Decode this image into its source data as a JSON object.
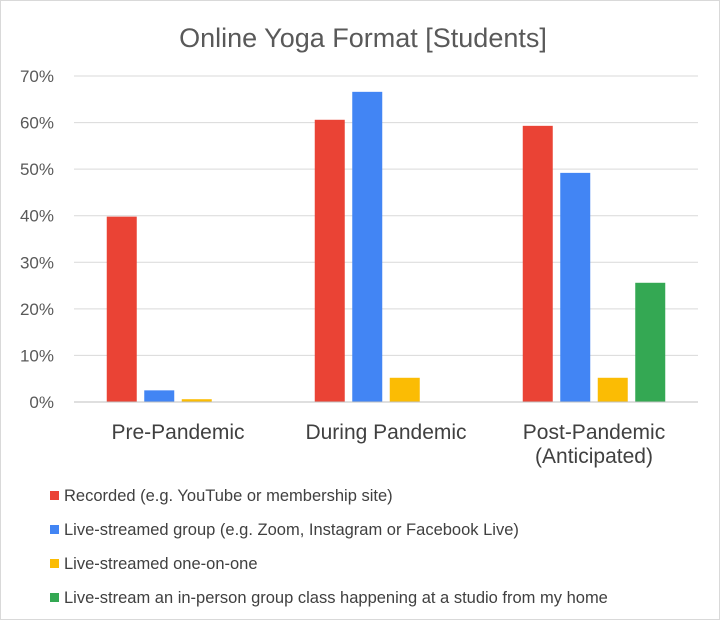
{
  "chart_data": {
    "type": "bar",
    "title": "Online Yoga Format [Students]",
    "xlabel": "",
    "ylabel": "",
    "ylim": [
      0,
      70
    ],
    "yticks": [
      "0%",
      "10%",
      "20%",
      "30%",
      "40%",
      "50%",
      "60%",
      "70%"
    ],
    "grid": true,
    "legend_position": "bottom",
    "categories": [
      [
        "Pre-Pandemic"
      ],
      [
        "During Pandemic"
      ],
      [
        "Post-Pandemic",
        "(Anticipated)"
      ]
    ],
    "series": [
      {
        "name": "Recorded (e.g. YouTube or membership site)",
        "color": "#EA4335",
        "values": [
          39.8,
          60.6,
          59.3
        ]
      },
      {
        "name": "Live-streamed group (e.g. Zoom, Instagram or Facebook Live)",
        "color": "#4285F4",
        "values": [
          2.5,
          66.6,
          49.2
        ]
      },
      {
        "name": "Live-streamed one-on-one",
        "color": "#FBBC04",
        "values": [
          0.6,
          5.2,
          5.2
        ]
      },
      {
        "name": "Live-stream an in-person group class happening at a studio from my home",
        "color": "#34A853",
        "values": [
          0,
          0,
          25.6
        ]
      }
    ]
  }
}
